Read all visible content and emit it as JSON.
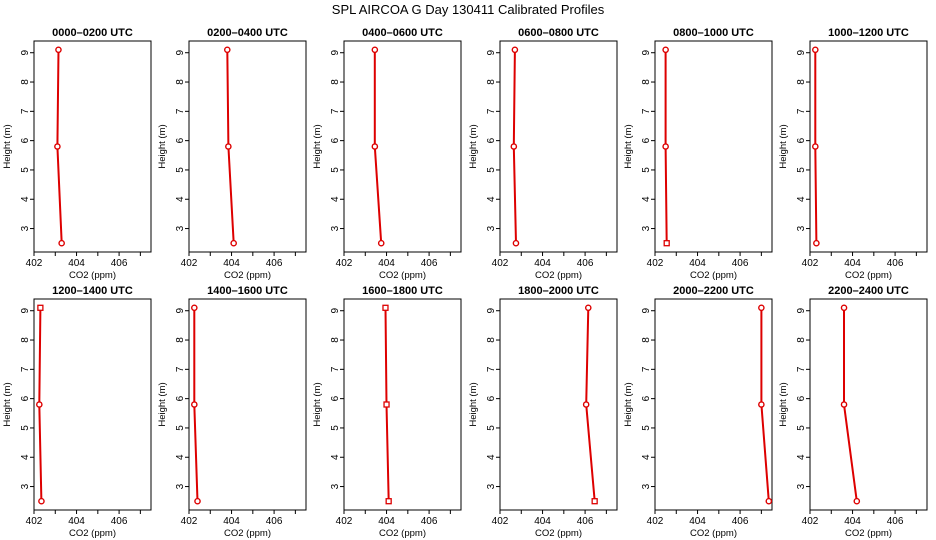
{
  "figure_title": "SPL AIRCOA G  Day 130411  Calibrated Profiles",
  "colors": {
    "series": "#dd0000",
    "frame": "#000000"
  },
  "chart_data": [
    {
      "type": "line",
      "title": "0000–0200 UTC",
      "xlabel": "CO2 (ppm)",
      "ylabel": "Height (m)",
      "xlim": [
        402,
        407.5
      ],
      "ylim": [
        2.2,
        9.4
      ],
      "xticks": [
        402,
        404,
        406
      ],
      "yticks": [
        3,
        4,
        5,
        6,
        7,
        8,
        9
      ],
      "x": [
        403.15,
        403.1,
        403.3
      ],
      "y": [
        9.1,
        5.8,
        2.5
      ],
      "markers": [
        "circle",
        "circle",
        "circle"
      ]
    },
    {
      "type": "line",
      "title": "0200–0400 UTC",
      "xlabel": "CO2 (ppm)",
      "ylabel": "Height (m)",
      "xlim": [
        402,
        407.5
      ],
      "ylim": [
        2.2,
        9.4
      ],
      "xticks": [
        402,
        404,
        406
      ],
      "yticks": [
        3,
        4,
        5,
        6,
        7,
        8,
        9
      ],
      "x": [
        403.8,
        403.85,
        404.1
      ],
      "y": [
        9.1,
        5.8,
        2.5
      ],
      "markers": [
        "circle",
        "circle",
        "circle"
      ]
    },
    {
      "type": "line",
      "title": "0400–0600 UTC",
      "xlabel": "CO2 (ppm)",
      "ylabel": "Height (m)",
      "xlim": [
        402,
        407.5
      ],
      "ylim": [
        2.2,
        9.4
      ],
      "xticks": [
        402,
        404,
        406
      ],
      "yticks": [
        3,
        4,
        5,
        6,
        7,
        8,
        9
      ],
      "x": [
        403.45,
        403.45,
        403.75
      ],
      "y": [
        9.1,
        5.8,
        2.5
      ],
      "markers": [
        "circle",
        "circle",
        "circle"
      ]
    },
    {
      "type": "line",
      "title": "0600–0800 UTC",
      "xlabel": "CO2 (ppm)",
      "ylabel": "Height (m)",
      "xlim": [
        402,
        407.5
      ],
      "ylim": [
        2.2,
        9.4
      ],
      "xticks": [
        402,
        404,
        406
      ],
      "yticks": [
        3,
        4,
        5,
        6,
        7,
        8,
        9
      ],
      "x": [
        402.7,
        402.65,
        402.75
      ],
      "y": [
        9.1,
        5.8,
        2.5
      ],
      "markers": [
        "circle",
        "circle",
        "circle"
      ]
    },
    {
      "type": "line",
      "title": "0800–1000 UTC",
      "xlabel": "CO2 (ppm)",
      "ylabel": "Height (m)",
      "xlim": [
        402,
        407.5
      ],
      "ylim": [
        2.2,
        9.4
      ],
      "xticks": [
        402,
        404,
        406
      ],
      "yticks": [
        3,
        4,
        5,
        6,
        7,
        8,
        9
      ],
      "x": [
        402.5,
        402.5,
        402.55
      ],
      "y": [
        9.1,
        5.8,
        2.5
      ],
      "markers": [
        "circle",
        "circle",
        "square"
      ]
    },
    {
      "type": "line",
      "title": "1000–1200 UTC",
      "xlabel": "CO2 (ppm)",
      "ylabel": "Height (m)",
      "xlim": [
        402,
        407.5
      ],
      "ylim": [
        2.2,
        9.4
      ],
      "xticks": [
        402,
        404,
        406
      ],
      "yticks": [
        3,
        4,
        5,
        6,
        7,
        8,
        9
      ],
      "x": [
        402.25,
        402.25,
        402.3
      ],
      "y": [
        9.1,
        5.8,
        2.5
      ],
      "markers": [
        "circle",
        "circle",
        "circle"
      ]
    },
    {
      "type": "line",
      "title": "1200–1400 UTC",
      "xlabel": "CO2 (ppm)",
      "ylabel": "Height (m)",
      "xlim": [
        402,
        407.5
      ],
      "ylim": [
        2.2,
        9.4
      ],
      "xticks": [
        402,
        404,
        406
      ],
      "yticks": [
        3,
        4,
        5,
        6,
        7,
        8,
        9
      ],
      "x": [
        402.3,
        402.25,
        402.35
      ],
      "y": [
        9.1,
        5.8,
        2.5
      ],
      "markers": [
        "square",
        "circle",
        "circle"
      ]
    },
    {
      "type": "line",
      "title": "1400–1600 UTC",
      "xlabel": "CO2 (ppm)",
      "ylabel": "Height (m)",
      "xlim": [
        402,
        407.5
      ],
      "ylim": [
        2.2,
        9.4
      ],
      "xticks": [
        402,
        404,
        406
      ],
      "yticks": [
        3,
        4,
        5,
        6,
        7,
        8,
        9
      ],
      "x": [
        402.25,
        402.25,
        402.4
      ],
      "y": [
        9.1,
        5.8,
        2.5
      ],
      "markers": [
        "circle",
        "circle",
        "circle"
      ]
    },
    {
      "type": "line",
      "title": "1600–1800 UTC",
      "xlabel": "CO2 (ppm)",
      "ylabel": "Height (m)",
      "xlim": [
        402,
        407.5
      ],
      "ylim": [
        2.2,
        9.4
      ],
      "xticks": [
        402,
        404,
        406
      ],
      "yticks": [
        3,
        4,
        5,
        6,
        7,
        8,
        9
      ],
      "x": [
        403.95,
        404.0,
        404.1
      ],
      "y": [
        9.1,
        5.8,
        2.5
      ],
      "markers": [
        "square",
        "square",
        "square"
      ]
    },
    {
      "type": "line",
      "title": "1800–2000 UTC",
      "xlabel": "CO2 (ppm)",
      "ylabel": "Height (m)",
      "xlim": [
        402,
        407.5
      ],
      "ylim": [
        2.2,
        9.4
      ],
      "xticks": [
        402,
        404,
        406
      ],
      "yticks": [
        3,
        4,
        5,
        6,
        7,
        8,
        9
      ],
      "x": [
        406.15,
        406.05,
        406.45
      ],
      "y": [
        9.1,
        5.8,
        2.5
      ],
      "markers": [
        "circle",
        "circle",
        "square"
      ]
    },
    {
      "type": "line",
      "title": "2000–2200 UTC",
      "xlabel": "CO2 (ppm)",
      "ylabel": "Height (m)",
      "xlim": [
        402,
        407.5
      ],
      "ylim": [
        2.2,
        9.4
      ],
      "xticks": [
        402,
        404,
        406
      ],
      "yticks": [
        3,
        4,
        5,
        6,
        7,
        8,
        9
      ],
      "x": [
        407.0,
        407.0,
        407.35
      ],
      "y": [
        9.1,
        5.8,
        2.5
      ],
      "markers": [
        "circle",
        "circle",
        "circle"
      ]
    },
    {
      "type": "line",
      "title": "2200–2400 UTC",
      "xlabel": "CO2 (ppm)",
      "ylabel": "Height (m)",
      "xlim": [
        402,
        407.5
      ],
      "ylim": [
        2.2,
        9.4
      ],
      "xticks": [
        402,
        404,
        406
      ],
      "yticks": [
        3,
        4,
        5,
        6,
        7,
        8,
        9
      ],
      "x": [
        403.6,
        403.6,
        404.2
      ],
      "y": [
        9.1,
        5.8,
        2.5
      ],
      "markers": [
        "circle",
        "circle",
        "circle"
      ]
    }
  ]
}
